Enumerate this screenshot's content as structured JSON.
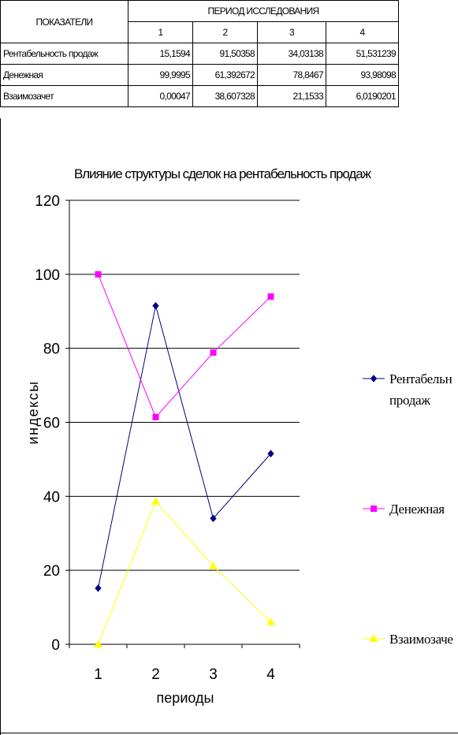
{
  "table": {
    "header_indicator": "ПОКАЗАТЕЛИ",
    "header_period": "ПЕРИОД ИССЛЕДОВАНИЯ",
    "periods": [
      "1",
      "2",
      "3",
      "4"
    ],
    "rows": [
      {
        "label": "Рентабельность продаж",
        "values": [
          "15,1594",
          "91,50358",
          "34,03138",
          "51,531239"
        ]
      },
      {
        "label": "Денежная",
        "values": [
          "99,9995",
          "61,392672",
          "78,8467",
          "93,98098"
        ]
      },
      {
        "label": "Взаимозачет",
        "values": [
          "0,00047",
          "38,607328",
          "21,1533",
          "6,0190201"
        ]
      }
    ]
  },
  "chart_data": {
    "type": "line",
    "title": "Влияние структуры сделок на рентабельность продаж",
    "xlabel": "периоды",
    "ylabel": "индексы",
    "categories": [
      "1",
      "2",
      "3",
      "4"
    ],
    "ylim": [
      0,
      120
    ],
    "yticks": [
      "0",
      "20",
      "40",
      "60",
      "80",
      "100",
      "120"
    ],
    "grid": true,
    "legend_position": "right",
    "series": [
      {
        "name": "Рентабельность продаж",
        "legend_lines": [
          "Рентабельн",
          "продаж"
        ],
        "values": [
          15.1594,
          91.50358,
          34.03138,
          51.531239
        ],
        "color": "#000080",
        "marker": "diamond"
      },
      {
        "name": "Денежная",
        "legend_lines": [
          "Денежная"
        ],
        "values": [
          99.9995,
          61.392672,
          78.8467,
          93.98098
        ],
        "color": "#ff00ff",
        "marker": "square"
      },
      {
        "name": "Взаимозачет",
        "legend_lines": [
          "Взаимозаче"
        ],
        "values": [
          0.00047,
          38.607328,
          21.1533,
          6.0190201
        ],
        "color": "#ffff00",
        "marker": "triangle"
      }
    ]
  }
}
